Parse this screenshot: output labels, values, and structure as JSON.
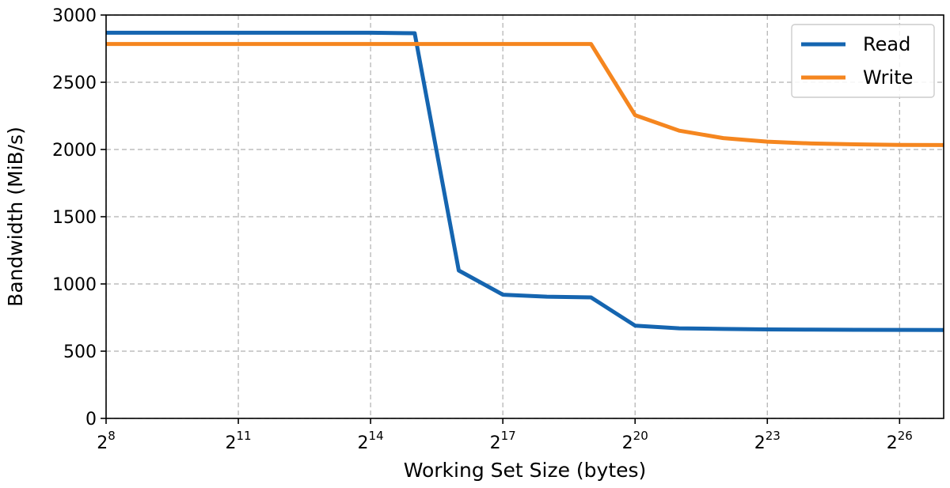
{
  "chart_data": {
    "type": "line",
    "xlabel": "Working Set Size (bytes)",
    "ylabel": "Bandwidth (MiB/s)",
    "x_scale": "log2",
    "x_base": "2",
    "xlim_exponent": [
      8,
      27
    ],
    "ylim": [
      0,
      3000
    ],
    "grid": true,
    "legend_position": "top-right",
    "x_ticks": [
      {
        "base": "2",
        "exp": "8",
        "value": 8
      },
      {
        "base": "2",
        "exp": "11",
        "value": 11
      },
      {
        "base": "2",
        "exp": "14",
        "value": 14
      },
      {
        "base": "2",
        "exp": "17",
        "value": 17
      },
      {
        "base": "2",
        "exp": "20",
        "value": 20
      },
      {
        "base": "2",
        "exp": "23",
        "value": 23
      },
      {
        "base": "2",
        "exp": "26",
        "value": 26
      }
    ],
    "y_ticks": [
      0,
      500,
      1000,
      1500,
      2000,
      2500,
      3000
    ],
    "x_exponents": [
      8,
      9,
      10,
      11,
      12,
      13,
      14,
      15,
      16,
      17,
      18,
      19,
      20,
      21,
      22,
      23,
      24,
      25,
      26,
      27
    ],
    "series": [
      {
        "name": "Read",
        "color": "#1565b0",
        "values": [
          2868,
          2868,
          2868,
          2868,
          2868,
          2868,
          2868,
          2865,
          1100,
          920,
          905,
          900,
          690,
          670,
          665,
          662,
          660,
          659,
          658,
          657
        ]
      },
      {
        "name": "Write",
        "color": "#f5861f",
        "values": [
          2785,
          2785,
          2785,
          2785,
          2785,
          2785,
          2785,
          2785,
          2785,
          2785,
          2785,
          2785,
          2255,
          2140,
          2085,
          2058,
          2045,
          2038,
          2034,
          2033
        ]
      }
    ]
  }
}
